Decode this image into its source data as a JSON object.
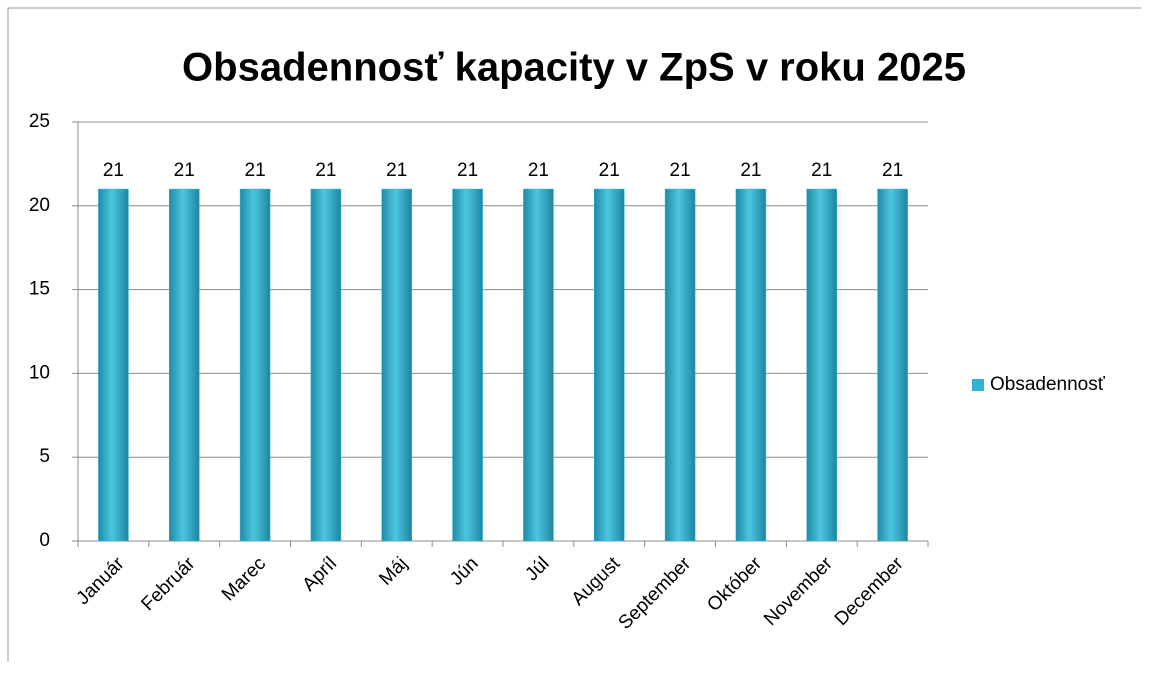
{
  "chart_data": {
    "type": "bar",
    "title": "Obsadennosť kapacity v ZpS v roku 2025",
    "categories": [
      "Január",
      "Február",
      "Marec",
      "Apríl",
      "Máj",
      "Jún",
      "Júl",
      "August",
      "September",
      "Október",
      "November",
      "December"
    ],
    "series": [
      {
        "name": "Obsadennosť",
        "color": "#31b3d1",
        "values": [
          21,
          21,
          21,
          21,
          21,
          21,
          21,
          21,
          21,
          21,
          21,
          21
        ]
      }
    ],
    "ylim": [
      0,
      25
    ],
    "yticks": [
      0,
      5,
      10,
      15,
      20,
      25
    ],
    "grid": true,
    "legend": "right"
  }
}
